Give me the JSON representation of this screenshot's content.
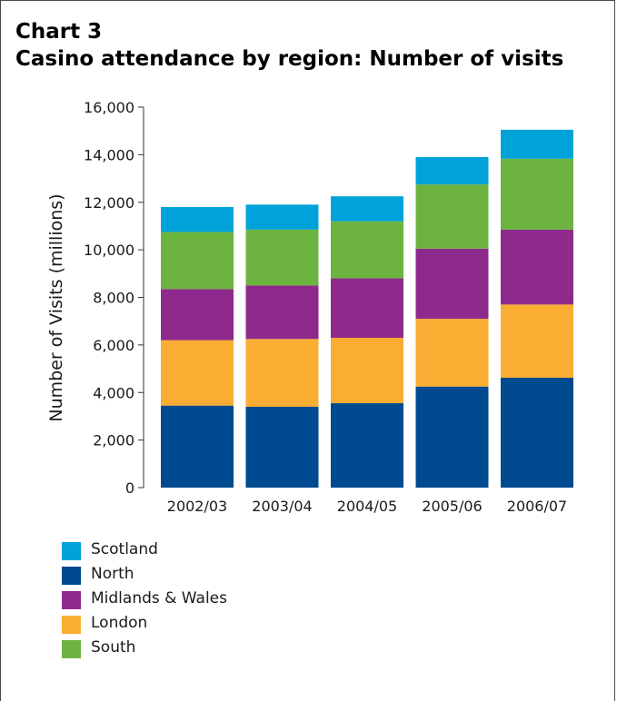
{
  "title_line1": "Chart 3",
  "title_line2": "Casino attendance by region: Number of visits",
  "colors": {
    "South": "#6db33f",
    "London": "#f9ae33",
    "Midlands & Wales": "#8e2a8b",
    "North": "#004a8f",
    "Scotland": "#00a3d9"
  },
  "legend": [
    "Scotland",
    "North",
    "Midlands & Wales",
    "London",
    "South"
  ],
  "chart_data": {
    "type": "bar",
    "stacked": true,
    "title": "Casino attendance by region: Number of visits",
    "xlabel": "",
    "ylabel": "Number of Visits (millions)",
    "ylim": [
      0,
      16000
    ],
    "yticks": [
      0,
      2000,
      4000,
      6000,
      8000,
      10000,
      12000,
      14000,
      16000
    ],
    "ytick_labels": [
      "0",
      "2,000",
      "4,000",
      "6,000",
      "8,000",
      "10,000",
      "12,000",
      "14,000",
      "16,000"
    ],
    "categories": [
      "2002/03",
      "2003/04",
      "2004/05",
      "2005/06",
      "2006/07"
    ],
    "series": [
      {
        "name": "North",
        "values": [
          3450,
          3400,
          3550,
          4250,
          4620
        ]
      },
      {
        "name": "London",
        "values": [
          2750,
          2850,
          2750,
          2850,
          3080
        ]
      },
      {
        "name": "Midlands & Wales",
        "values": [
          2150,
          2250,
          2500,
          2950,
          3150
        ]
      },
      {
        "name": "South",
        "values": [
          2400,
          2350,
          2400,
          2700,
          2980
        ]
      },
      {
        "name": "Scotland",
        "values": [
          1050,
          1050,
          1050,
          1150,
          1220
        ]
      }
    ],
    "legend_position": "bottom-left",
    "grid": false
  }
}
